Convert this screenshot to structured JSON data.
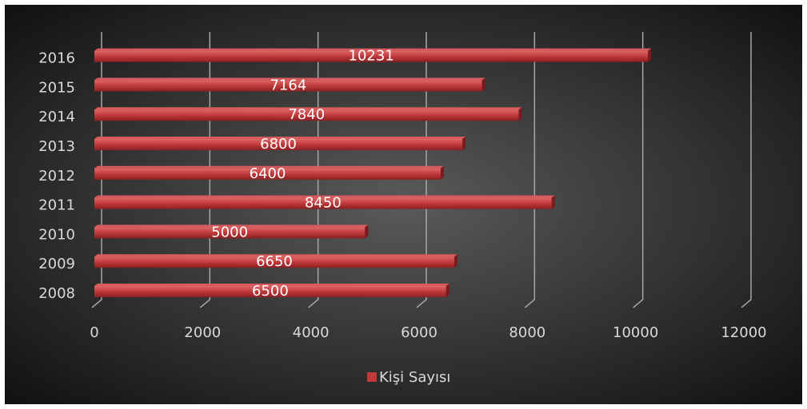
{
  "chart_data": {
    "type": "bar",
    "orientation": "horizontal",
    "categories": [
      "2008",
      "2009",
      "2010",
      "2011",
      "2012",
      "2013",
      "2014",
      "2015",
      "2016"
    ],
    "series": [
      {
        "name": "Kişi Sayısı",
        "color": "#c0393b",
        "values": [
          6500,
          6650,
          5000,
          8450,
          6400,
          6800,
          7840,
          7164,
          10231
        ]
      }
    ],
    "xlim": [
      0,
      12000
    ],
    "xticks": [
      0,
      2000,
      4000,
      6000,
      8000,
      10000,
      12000
    ],
    "grid": true,
    "legend": "bottom"
  }
}
